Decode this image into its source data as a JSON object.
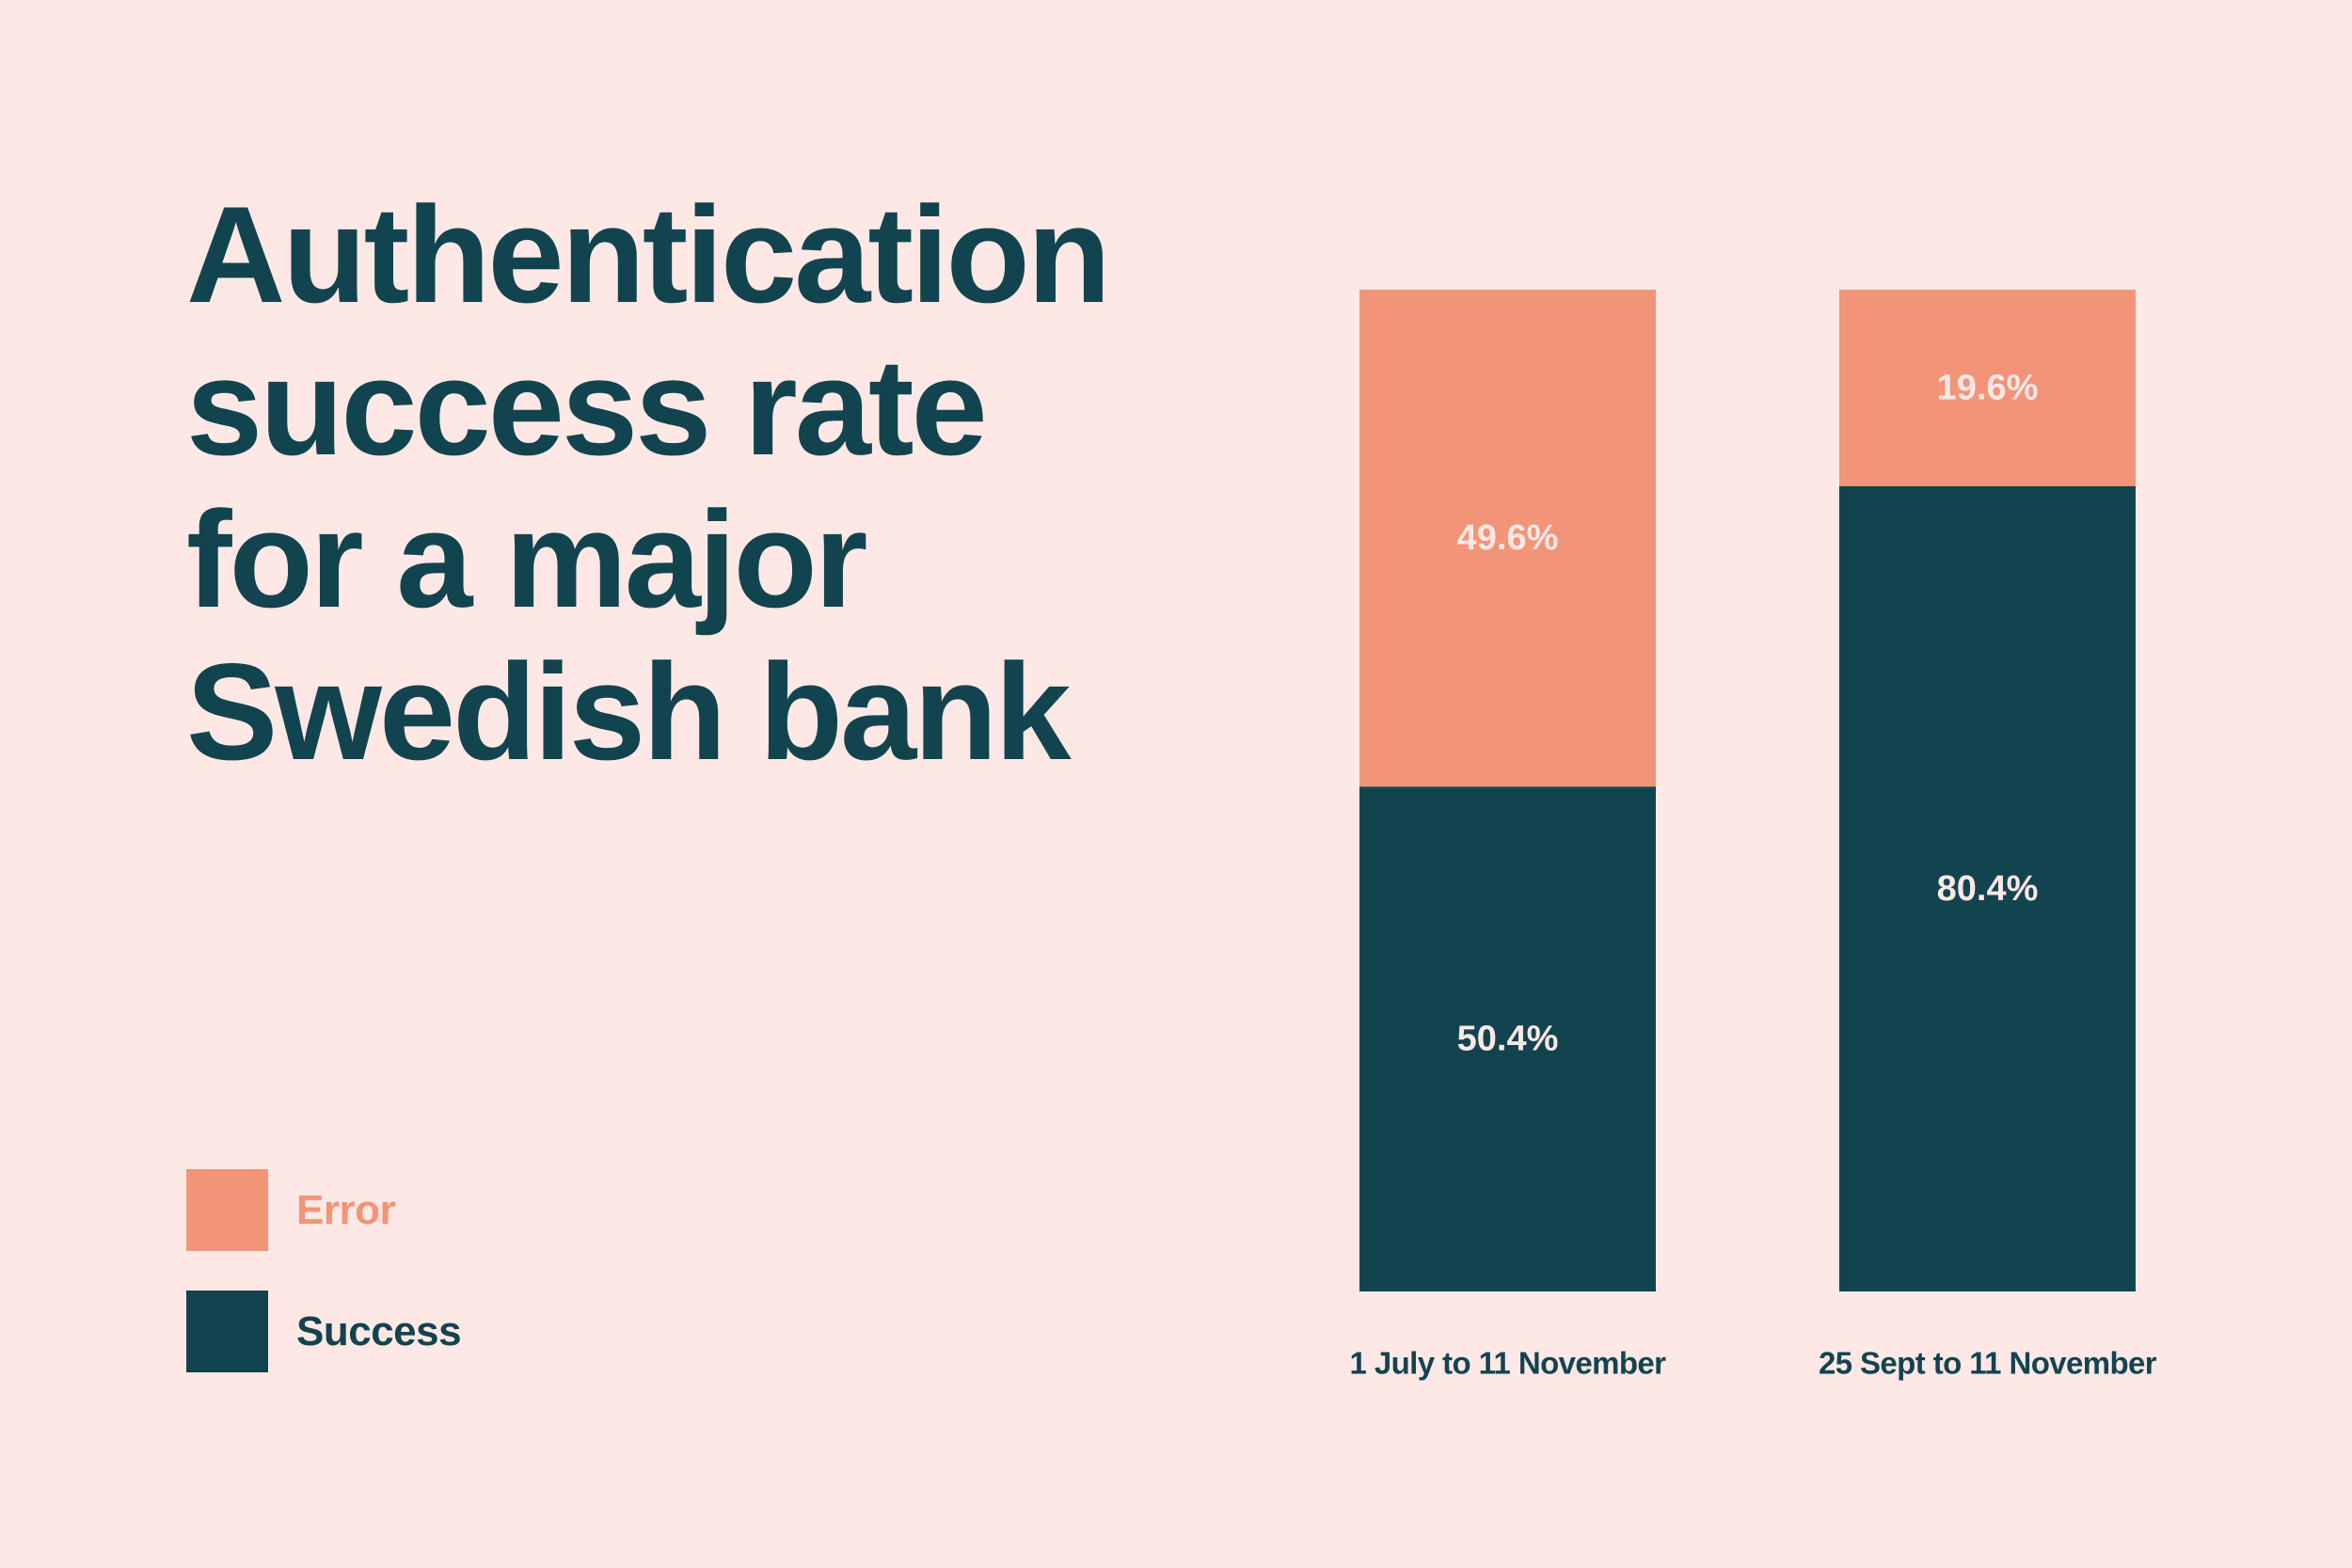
{
  "colors": {
    "background": "#FDE8E6",
    "error": "#F29477",
    "success": "#12444F",
    "error_label": "#FDE8E6",
    "success_label": "#FDE8E6"
  },
  "chart_data": {
    "type": "bar",
    "stacked": true,
    "orientation": "vertical",
    "title": "Authentication success rate for a major Swedish bank",
    "title_lines": [
      "Authentication",
      "success rate",
      "for a major",
      "Swedish bank"
    ],
    "categories": [
      "1 July to 11 November",
      "25 Sept to 11 November"
    ],
    "series": [
      {
        "name": "Success",
        "color": "#12444F",
        "values": [
          50.4,
          80.4
        ],
        "labels": [
          "50.4%",
          "80.4%"
        ]
      },
      {
        "name": "Error",
        "color": "#F29477",
        "values": [
          49.6,
          19.6
        ],
        "labels": [
          "49.6%",
          "19.6%"
        ]
      }
    ],
    "ylim": [
      0,
      100
    ],
    "unit": "%",
    "grid": false,
    "axes_visible": false,
    "legend": {
      "placement": "bottom-left",
      "entries": [
        {
          "label": "Error",
          "color": "#F29477"
        },
        {
          "label": "Success",
          "color": "#12444F"
        }
      ]
    }
  }
}
